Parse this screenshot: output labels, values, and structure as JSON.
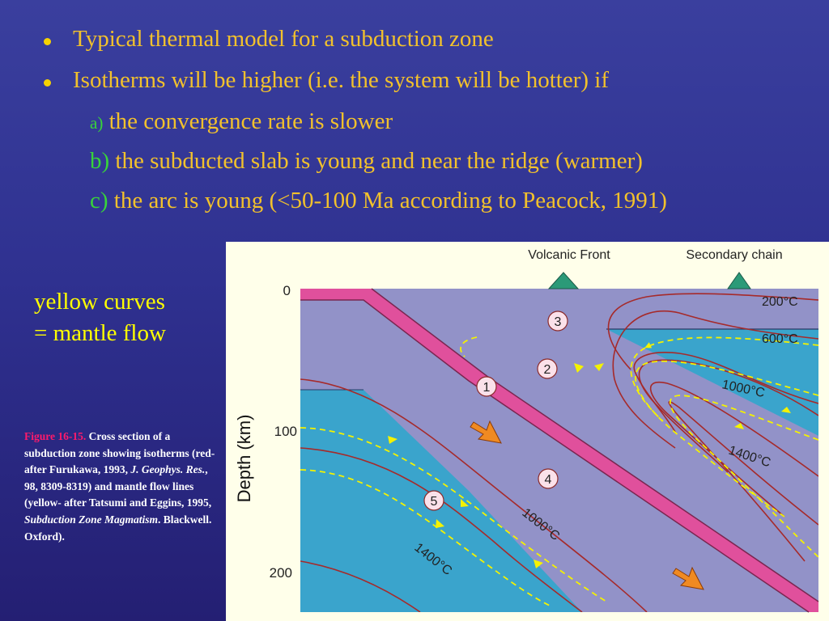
{
  "bullets": [
    {
      "text": "Typical thermal model for a subduction zone"
    },
    {
      "text": "Isotherms will be higher (i.e. the system will be hotter) if"
    }
  ],
  "conditions": [
    {
      "marker": "a)",
      "text": "the convergence rate is slower"
    },
    {
      "marker": "b)",
      "text": "the subducted slab is young and near the ridge (warmer)"
    },
    {
      "marker": "c)",
      "text": "the arc is young (<50-100 Ma according to Peacock, 1991)"
    }
  ],
  "flow_label": {
    "line1": "yellow curves",
    "line2": "= mantle flow"
  },
  "caption": {
    "fig_label": "Figure 16-15.",
    "text1": " Cross section of a subduction zone showing isotherms (red-after Furukawa, 1993, ",
    "journal": "J. Geophys. Res.",
    "text2": ", 98, 8309-8319) and mantle flow lines (yellow- after Tatsumi and Eggins, 1995, ",
    "book": "Subduction Zone Magmatism",
    "text3": ". Blackwell. Oxford)."
  },
  "diagram": {
    "volcanic_front": "Volcanic Front",
    "secondary_chain": "Secondary chain",
    "depth_axis_label": "Depth (km)",
    "depth_ticks": [
      "0",
      "100",
      "200"
    ],
    "isotherm_labels": [
      "200°C",
      "600°C",
      "1000°C",
      "1400°C",
      "1000°C",
      "1400°C"
    ],
    "region_numbers": [
      "1",
      "2",
      "3",
      "4",
      "5"
    ],
    "colors": {
      "background": "#ffffea",
      "lithosphere": "#9292c8",
      "asthenosphere": "#3aa4cc",
      "slab_crust": "#e0509c",
      "isotherm": "#a62a2a",
      "flow_line": "#f4f200",
      "arrow": "#f08a22",
      "volcano": "#2b9a78"
    }
  }
}
